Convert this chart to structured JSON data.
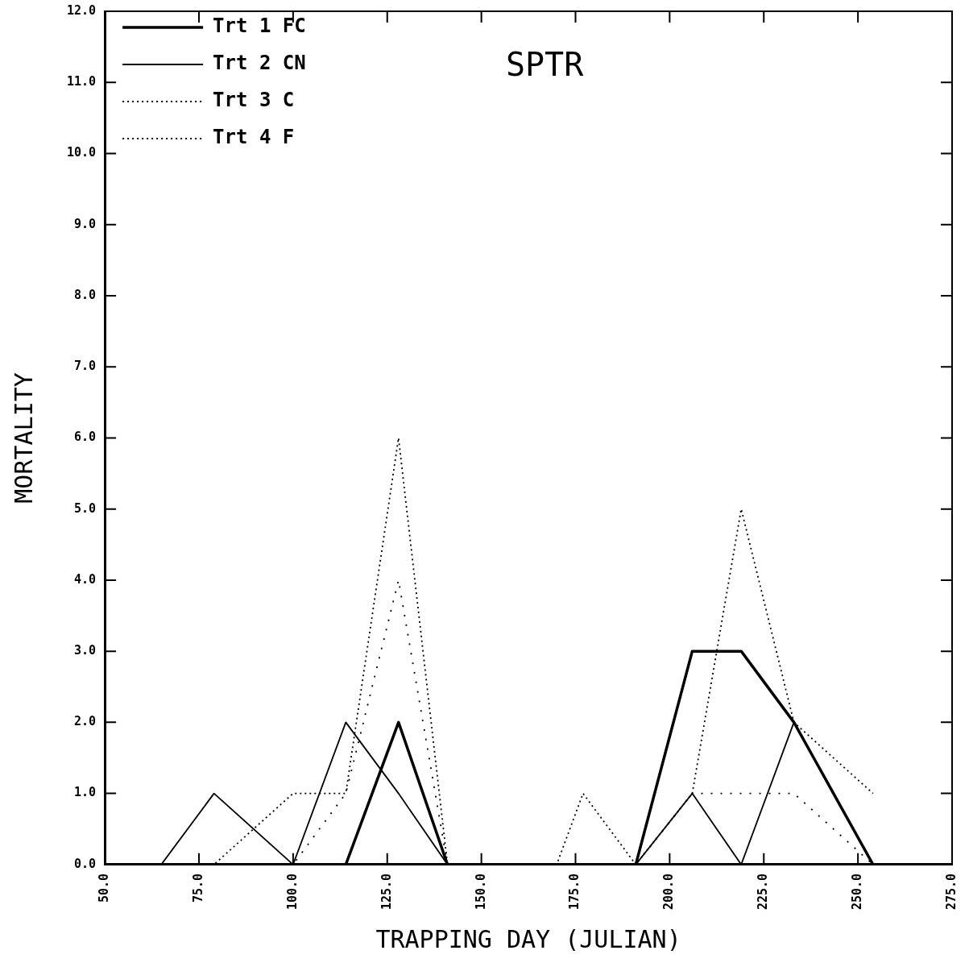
{
  "chart_data": {
    "type": "line",
    "title": "SPTR",
    "xlabel": "TRAPPING DAY (JULIAN)",
    "ylabel": "MORTALITY",
    "x": [
      50,
      65,
      79,
      100,
      114,
      128,
      141,
      170,
      177,
      191,
      206,
      219,
      233,
      254
    ],
    "series": [
      {
        "name": "Trt 1 FC",
        "color": "#000000",
        "line_style": "solid",
        "values": [
          0,
          0,
          0,
          0,
          0,
          2,
          0,
          0,
          0,
          0,
          3,
          3,
          2,
          0
        ]
      },
      {
        "name": "Trt 2 CN",
        "color": "#000000",
        "line_style": "solid",
        "values": [
          0,
          0,
          1,
          0,
          2,
          1,
          0,
          0,
          0,
          0,
          1,
          0,
          2,
          0
        ]
      },
      {
        "name": "Trt 3 C",
        "color": "#000000",
        "line_style": "dotted",
        "values": [
          0,
          0,
          0,
          1,
          1,
          6,
          0,
          0,
          1,
          0,
          1,
          5,
          2,
          1
        ]
      },
      {
        "name": "Trt 4 F",
        "color": "#000000",
        "line_style": "dotted",
        "values": [
          0,
          0,
          0,
          0,
          1,
          4,
          0,
          0,
          0,
          0,
          1,
          1,
          1,
          0
        ]
      }
    ],
    "xlim": [
      50,
      275
    ],
    "xticks": [
      {
        "value": 50,
        "label": "50.0"
      },
      {
        "value": 75,
        "label": "75.0"
      },
      {
        "value": 100,
        "label": "100.0"
      },
      {
        "value": 125,
        "label": "125.0"
      },
      {
        "value": 150,
        "label": "150.0"
      },
      {
        "value": 175,
        "label": "175.0"
      },
      {
        "value": 200,
        "label": "200.0"
      },
      {
        "value": 225,
        "label": "225.0"
      },
      {
        "value": 250,
        "label": "250.0"
      },
      {
        "value": 275,
        "label": "275.0"
      }
    ],
    "ylim": [
      0,
      12
    ],
    "yticks": [
      {
        "value": 0,
        "label": "0.0"
      },
      {
        "value": 1,
        "label": "1.0"
      },
      {
        "value": 2,
        "label": "2.0"
      },
      {
        "value": 3,
        "label": "3.0"
      },
      {
        "value": 4,
        "label": "4.0"
      },
      {
        "value": 5,
        "label": "5.0"
      },
      {
        "value": 6,
        "label": "6.0"
      },
      {
        "value": 7,
        "label": "7.0"
      },
      {
        "value": 8,
        "label": "8.0"
      },
      {
        "value": 9,
        "label": "9.0"
      },
      {
        "value": 10,
        "label": "10.0"
      },
      {
        "value": 11,
        "label": "11.0"
      },
      {
        "value": 12,
        "label": "12.0"
      }
    ],
    "grid": false,
    "legend": "top left",
    "marker": "none"
  }
}
